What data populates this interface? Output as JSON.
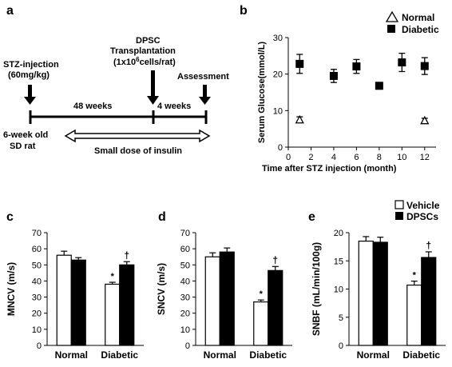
{
  "panel_labels": {
    "a": "a",
    "b": "b",
    "c": "c",
    "d": "d",
    "e": "e"
  },
  "timeline": {
    "stz_line1": "STZ-injection",
    "stz_line2": "(60mg/kg)",
    "dpsc_line1": "DPSC",
    "dpsc_line2": "Transplantation",
    "dpsc_line3_pre": "(1x10",
    "dpsc_line3_sup": "6",
    "dpsc_line3_post": "cells/rat)",
    "assessment": "Assessment",
    "weeks_48": "48 weeks",
    "weeks_4": "4 weeks",
    "rat_line1": "6-week old",
    "rat_line2": "SD rat",
    "insulin": "Small dose of insulin"
  },
  "legend_b": {
    "normal": "Normal",
    "diabetic": "Diabetic"
  },
  "legend_bars": {
    "vehicle": "Vehicle",
    "dpscs": "DPSCs"
  },
  "colors": {
    "vehicle": "#ffffff",
    "dpscs": "#000000",
    "axis": "#000000"
  },
  "chart_data": [
    {
      "id": "b",
      "type": "scatter",
      "title": "",
      "xlabel": "Time after STZ injection (month)",
      "ylabel": "Serum Glucose(mmol/L)",
      "xlim": [
        0,
        13
      ],
      "ylim": [
        0,
        30
      ],
      "xticks": [
        0,
        2,
        4,
        6,
        8,
        10,
        12
      ],
      "yticks": [
        0,
        10,
        20,
        30
      ],
      "series": [
        {
          "name": "Normal",
          "marker": "triangle-open",
          "x": [
            1,
            12
          ],
          "y": [
            7.5,
            7.3
          ],
          "err": [
            0.8,
            0.6
          ]
        },
        {
          "name": "Diabetic",
          "marker": "square-filled",
          "x": [
            1,
            4,
            6,
            8,
            10,
            12
          ],
          "y": [
            22.8,
            19.5,
            22.1,
            16.8,
            23.2,
            22.2
          ],
          "err": [
            2.6,
            1.8,
            1.9,
            0.9,
            2.5,
            2.3
          ]
        }
      ]
    },
    {
      "id": "c",
      "type": "bar",
      "ylabel": "MNCV (m/s)",
      "ylim": [
        0,
        70
      ],
      "yticks": [
        0,
        10,
        20,
        30,
        40,
        50,
        60,
        70
      ],
      "categories": [
        "Normal",
        "Diabetic"
      ],
      "series": [
        {
          "name": "Vehicle",
          "values": [
            56,
            38
          ],
          "err": [
            2.5,
            1.2
          ]
        },
        {
          "name": "DPSCs",
          "values": [
            53,
            50
          ],
          "err": [
            1.5,
            2.0
          ]
        }
      ],
      "annotations": [
        {
          "label": "*",
          "category": "Diabetic",
          "series": "Vehicle"
        },
        {
          "label": "†",
          "category": "Diabetic",
          "series": "DPSCs"
        }
      ]
    },
    {
      "id": "d",
      "type": "bar",
      "ylabel": "SNCV (m/s)",
      "ylim": [
        0,
        70
      ],
      "yticks": [
        0,
        10,
        20,
        30,
        40,
        50,
        60,
        70
      ],
      "categories": [
        "Normal",
        "Diabetic"
      ],
      "series": [
        {
          "name": "Vehicle",
          "values": [
            55,
            27
          ],
          "err": [
            2.5,
            1.2
          ]
        },
        {
          "name": "DPSCs",
          "values": [
            58,
            46.5
          ],
          "err": [
            2.5,
            2.5
          ]
        }
      ],
      "annotations": [
        {
          "label": "*",
          "category": "Diabetic",
          "series": "Vehicle"
        },
        {
          "label": "†",
          "category": "Diabetic",
          "series": "DPSCs"
        }
      ]
    },
    {
      "id": "e",
      "type": "bar",
      "ylabel": "SNBF (mL/min/100g)",
      "ylim": [
        0,
        20
      ],
      "yticks": [
        0,
        5,
        10,
        15,
        20
      ],
      "categories": [
        "Normal",
        "Diabetic"
      ],
      "series": [
        {
          "name": "Vehicle",
          "values": [
            18.5,
            10.7
          ],
          "err": [
            0.8,
            0.7
          ]
        },
        {
          "name": "DPSCs",
          "values": [
            18.3,
            15.6
          ],
          "err": [
            0.9,
            1.0
          ]
        }
      ],
      "annotations": [
        {
          "label": "*",
          "category": "Diabetic",
          "series": "Vehicle"
        },
        {
          "label": "†",
          "category": "Diabetic",
          "series": "DPSCs"
        }
      ]
    }
  ]
}
